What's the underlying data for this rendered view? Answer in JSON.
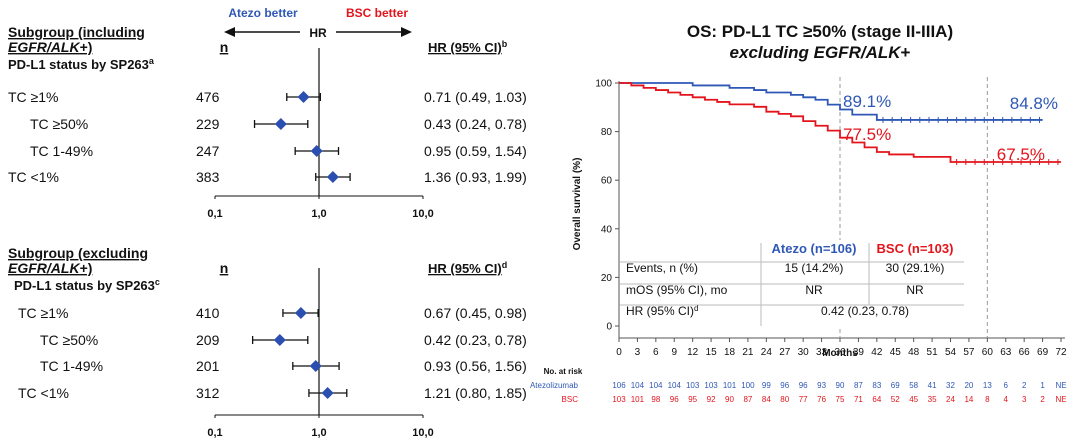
{
  "forest": {
    "arrow_left_label": "Atezo better",
    "arrow_right_label": "BSC better",
    "arrow_mid_label": "HR",
    "axis_ticks": [
      "0,1",
      "1,0",
      "10,0"
    ],
    "colors": {
      "atezo": "#2f58b6",
      "bsc": "#e3141b",
      "marker": "#2b4fb0"
    },
    "panels": [
      {
        "title_line1": "Subgroup (including",
        "title_line2_italic": "EGFR/ALK",
        "title_line2_rest": "+)",
        "n_header": "n",
        "hr_header": "HR (95% CI)",
        "hr_header_sup": "b",
        "status_label": "PD-L1 status by SP263",
        "status_sup": "a",
        "rows": [
          {
            "label": "TC ≥1%",
            "indent": 0,
            "n": "476",
            "hr": 0.71,
            "lo": 0.49,
            "hi": 1.03,
            "ci_text": "0.71 (0.49, 1.03)"
          },
          {
            "label": "TC ≥50%",
            "indent": 1,
            "n": "229",
            "hr": 0.43,
            "lo": 0.24,
            "hi": 0.78,
            "ci_text": "0.43 (0.24, 0.78)"
          },
          {
            "label": "TC 1-49%",
            "indent": 1,
            "n": "247",
            "hr": 0.95,
            "lo": 0.59,
            "hi": 1.54,
            "ci_text": "0.95 (0.59, 1.54)"
          },
          {
            "label": "TC <1%",
            "indent": 0,
            "n": "383",
            "hr": 1.36,
            "lo": 0.93,
            "hi": 1.99,
            "ci_text": "1.36 (0.93, 1.99)"
          }
        ]
      },
      {
        "title_line1": "Subgroup (excluding",
        "title_line2_italic": "EGFR/ALK",
        "title_line2_rest": "+)",
        "n_header": "n",
        "hr_header": "HR (95% CI)",
        "hr_header_sup": "d",
        "status_label": "PD-L1 status by SP263",
        "status_sup": "c",
        "rows": [
          {
            "label": "TC ≥1%",
            "indent": 0,
            "n": "410",
            "hr": 0.67,
            "lo": 0.45,
            "hi": 0.98,
            "ci_text": "0.67 (0.45, 0.98)"
          },
          {
            "label": "TC ≥50%",
            "indent": 1,
            "n": "209",
            "hr": 0.42,
            "lo": 0.23,
            "hi": 0.78,
            "ci_text": "0.42 (0.23, 0.78)"
          },
          {
            "label": "TC 1-49%",
            "indent": 1,
            "n": "201",
            "hr": 0.93,
            "lo": 0.56,
            "hi": 1.56,
            "ci_text": "0.93 (0.56, 1.56)"
          },
          {
            "label": "TC <1%",
            "indent": 0,
            "n": "312",
            "hr": 1.21,
            "lo": 0.8,
            "hi": 1.85,
            "ci_text": "1.21 (0.80, 1.85)"
          }
        ]
      }
    ]
  },
  "km": {
    "title_line1": "OS: PD-L1 TC ≥50% (stage II-IIIA)",
    "title_line2_italic": "excluding EGFR/ALK",
    "title_line2_rest": "+",
    "ylabel": "Overall survival (%)",
    "xlabel": "Months",
    "yticks": [
      0,
      20,
      40,
      60,
      80,
      100
    ],
    "xticks": [
      0,
      3,
      6,
      9,
      12,
      15,
      18,
      21,
      24,
      27,
      30,
      33,
      36,
      39,
      42,
      45,
      48,
      51,
      54,
      57,
      60,
      63,
      66,
      69,
      72
    ],
    "ylim": [
      0,
      100
    ],
    "xlim": [
      0,
      72
    ],
    "vlines": [
      36,
      60
    ],
    "annotations": [
      {
        "text": "89.1%",
        "series": "atezo"
      },
      {
        "text": "84.8%",
        "series": "atezo"
      },
      {
        "text": "77.5%",
        "series": "bsc"
      },
      {
        "text": "67.5%",
        "series": "bsc"
      }
    ],
    "table": {
      "col_atezo": "Atezo (n=106)",
      "col_bsc": "BSC (n=103)",
      "rows": [
        {
          "label": "Events, n (%)",
          "atezo": "15 (14.2%)",
          "bsc": "30 (29.1%)"
        },
        {
          "label": "mOS (95% CI), mo",
          "atezo": "NR",
          "bsc": "NR"
        },
        {
          "label": "HR (95% CI)",
          "label_sup": "d",
          "combined": "0.42 (0.23, 0.78)"
        }
      ]
    },
    "risk": {
      "title": "No. at risk",
      "atezo_label": "Atezolizumab",
      "bsc_label": "BSC",
      "atezo": [
        "106",
        "104",
        "104",
        "104",
        "103",
        "103",
        "101",
        "100",
        "99",
        "96",
        "96",
        "93",
        "90",
        "87",
        "83",
        "69",
        "58",
        "41",
        "32",
        "20",
        "13",
        "6",
        "2",
        "1",
        "NE"
      ],
      "bsc": [
        "103",
        "101",
        "98",
        "96",
        "95",
        "92",
        "90",
        "87",
        "84",
        "80",
        "77",
        "76",
        "75",
        "71",
        "64",
        "52",
        "45",
        "35",
        "24",
        "14",
        "8",
        "4",
        "3",
        "2",
        "NE"
      ]
    }
  },
  "chart_data": [
    {
      "type": "forest",
      "title": "Subgroup (including EGFR/ALK+)",
      "scale": "log",
      "xlim": [
        0.1,
        10
      ],
      "categories": [
        "TC ≥1%",
        "TC ≥50%",
        "TC 1-49%",
        "TC <1%"
      ],
      "n": [
        476,
        229,
        247,
        383
      ],
      "hr": [
        0.71,
        0.43,
        0.95,
        1.36
      ],
      "ci_low": [
        0.49,
        0.24,
        0.59,
        0.93
      ],
      "ci_high": [
        1.03,
        0.78,
        1.54,
        1.99
      ]
    },
    {
      "type": "forest",
      "title": "Subgroup (excluding EGFR/ALK+)",
      "scale": "log",
      "xlim": [
        0.1,
        10
      ],
      "categories": [
        "TC ≥1%",
        "TC ≥50%",
        "TC 1-49%",
        "TC <1%"
      ],
      "n": [
        410,
        209,
        201,
        312
      ],
      "hr": [
        0.67,
        0.42,
        0.93,
        1.21
      ],
      "ci_low": [
        0.45,
        0.23,
        0.56,
        0.8
      ],
      "ci_high": [
        0.98,
        0.78,
        1.56,
        1.85
      ]
    },
    {
      "type": "line",
      "title": "OS: PD-L1 TC ≥50% (stage II-IIIA) excluding EGFR/ALK+",
      "xlabel": "Months",
      "ylabel": "Overall survival (%)",
      "xlim": [
        0,
        72
      ],
      "ylim": [
        0,
        100
      ],
      "series": [
        {
          "name": "Atezo",
          "color": "#2f58b6",
          "x": [
            0,
            8,
            12,
            16,
            18,
            20,
            22,
            24,
            26,
            28,
            30,
            32,
            34,
            36,
            38,
            42,
            69
          ],
          "y": [
            100,
            100,
            99.0,
            99.0,
            98.0,
            98.0,
            97.1,
            96.1,
            96.1,
            95.1,
            94.1,
            93.1,
            91.1,
            89.1,
            87.0,
            84.8,
            84.8
          ]
        },
        {
          "name": "BSC",
          "color": "#e3141b",
          "x": [
            0,
            2,
            4,
            6,
            8,
            10,
            12,
            14,
            16,
            18,
            20,
            22,
            24,
            26,
            28,
            30,
            32,
            34,
            36,
            38,
            40,
            42,
            44,
            48,
            54,
            72
          ],
          "y": [
            100,
            99.0,
            98.0,
            97.1,
            96.1,
            95.1,
            94.1,
            93.1,
            92.2,
            91.2,
            91.2,
            90.2,
            88.2,
            87.3,
            86.3,
            84.3,
            82.4,
            80.4,
            77.5,
            75.5,
            73.5,
            71.6,
            70.6,
            69.6,
            67.5,
            67.5
          ]
        }
      ]
    }
  ]
}
